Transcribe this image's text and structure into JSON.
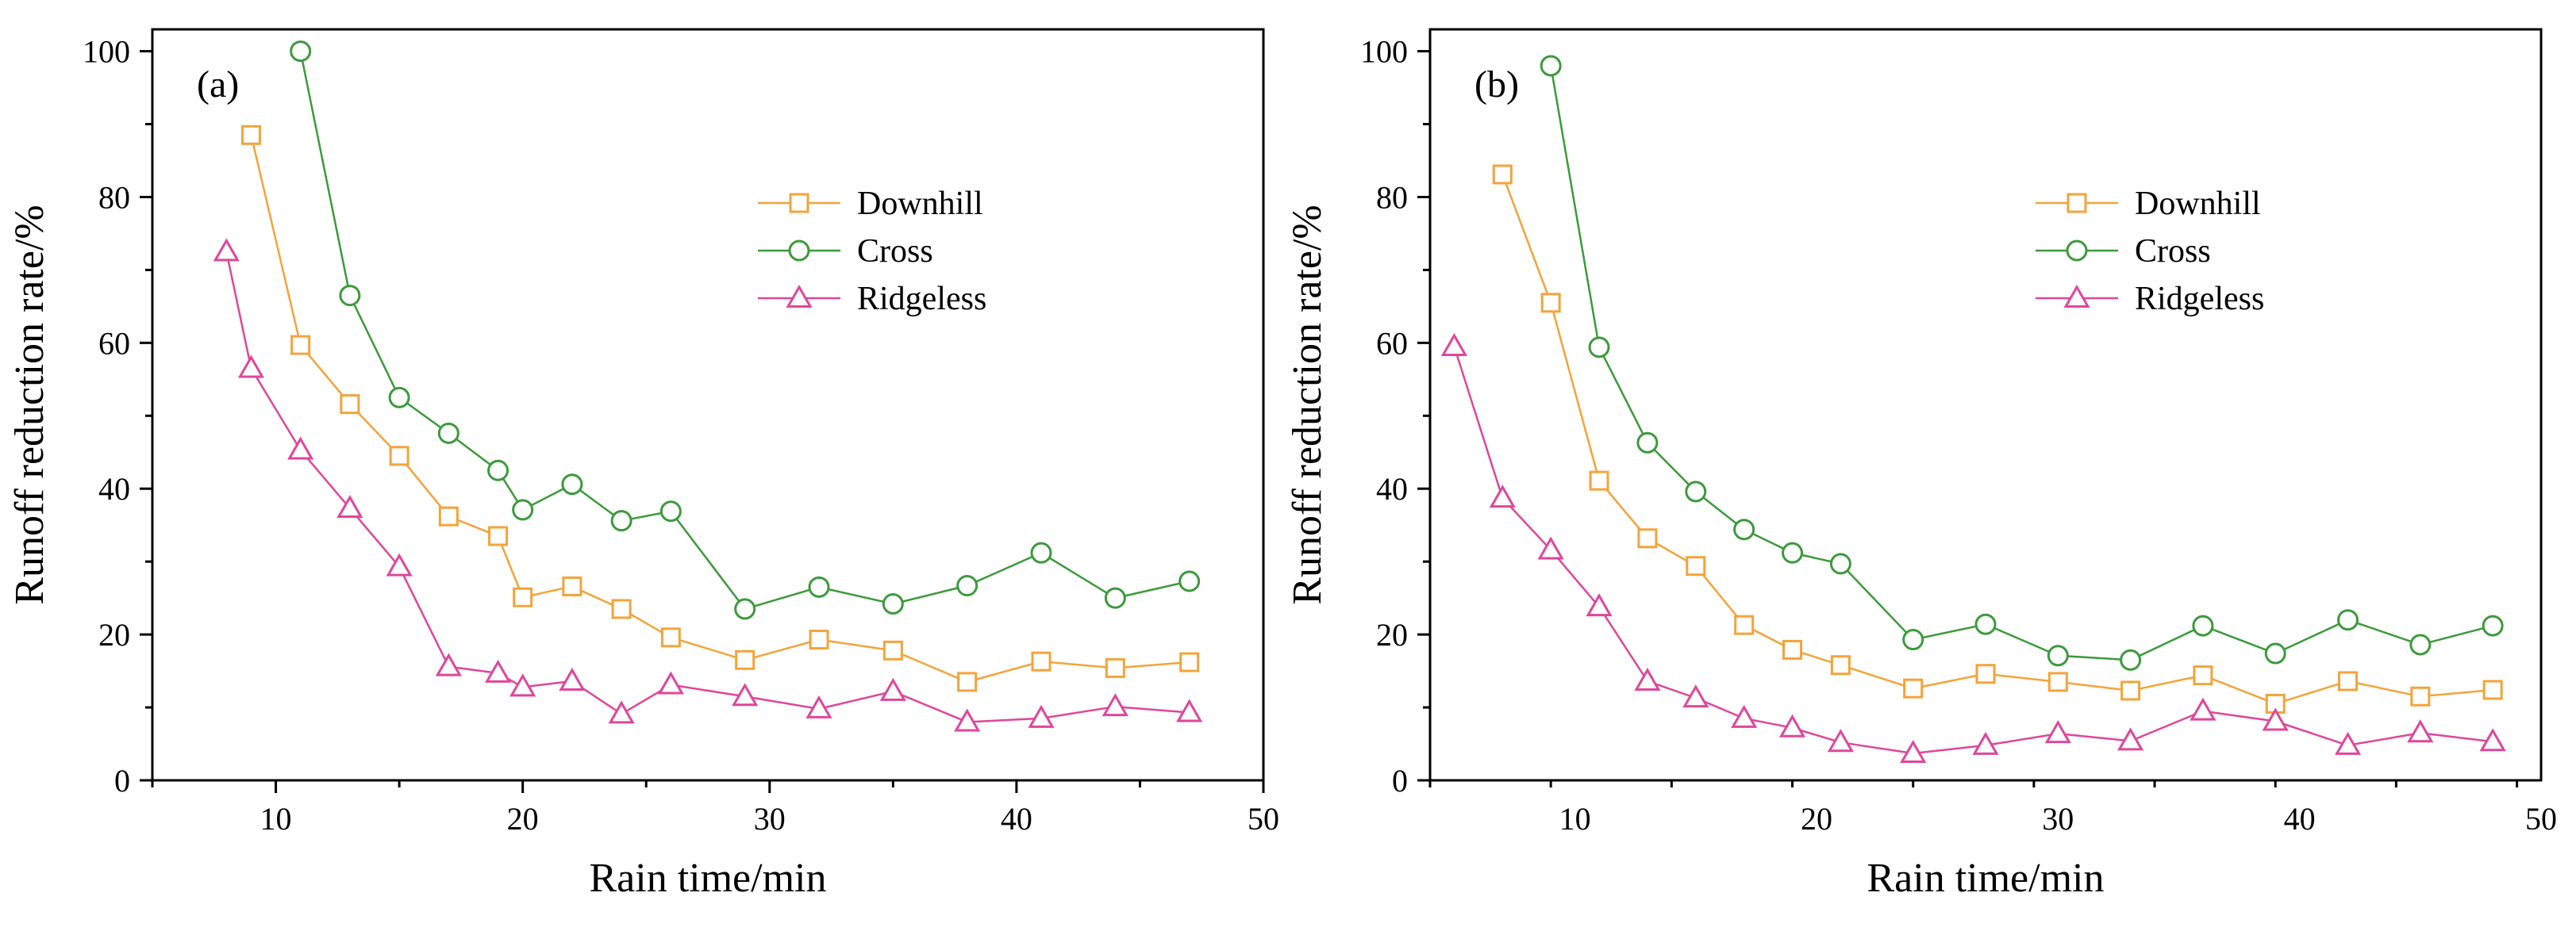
{
  "chart_data": [
    {
      "type": "line",
      "panel_label": "(a)",
      "xlabel": "Rain time/min",
      "ylabel": "Runoff reduction rate/%",
      "xlim": [
        5,
        50
      ],
      "ylim": [
        0,
        103
      ],
      "xticks": [
        10,
        20,
        30,
        40,
        50
      ],
      "yticks": [
        0,
        20,
        40,
        60,
        80,
        100
      ],
      "grid": false,
      "legend_position": "upper-middle-right",
      "series": [
        {
          "name": "Downhill",
          "marker": "square",
          "color": "#F5A33A",
          "x": [
            9,
            11,
            13,
            15,
            17,
            19,
            20,
            22,
            24,
            26,
            29,
            32,
            35,
            38,
            41,
            44,
            47
          ],
          "y": [
            88.5,
            59.7,
            51.6,
            44.5,
            36.2,
            33.5,
            25.1,
            26.6,
            23.5,
            19.6,
            16.5,
            19.3,
            17.8,
            13.5,
            16.3,
            15.4,
            16.2
          ]
        },
        {
          "name": "Cross",
          "marker": "circle",
          "color": "#3C9A3C",
          "x": [
            11,
            13,
            15,
            17,
            19,
            20,
            22,
            24,
            26,
            29,
            32,
            35,
            38,
            41,
            44,
            47
          ],
          "y": [
            100.0,
            66.5,
            52.5,
            47.6,
            42.5,
            37.1,
            40.6,
            35.6,
            36.9,
            23.5,
            26.5,
            24.2,
            26.7,
            31.2,
            25.0,
            27.3
          ]
        },
        {
          "name": "Ridgeless",
          "marker": "triangle",
          "color": "#E0469A",
          "x": [
            8,
            9,
            11,
            13,
            15,
            17,
            19,
            20,
            22,
            24,
            26,
            29,
            32,
            35,
            38,
            41,
            44,
            47
          ],
          "y": [
            72.5,
            56.5,
            45.3,
            37.3,
            29.3,
            15.6,
            14.7,
            12.8,
            13.6,
            9.1,
            13.1,
            11.5,
            9.8,
            12.2,
            8.0,
            8.5,
            10.1,
            9.3
          ]
        }
      ]
    },
    {
      "type": "line",
      "panel_label": "(b)",
      "xlabel": "Rain time/min",
      "ylabel": "Runoff reduction rate/%",
      "xlim": [
        4,
        50
      ],
      "ylim": [
        0,
        103
      ],
      "xticks": [
        10,
        20,
        30,
        40,
        50
      ],
      "yticks": [
        0,
        20,
        40,
        60,
        80,
        100
      ],
      "grid": false,
      "legend_position": "upper-middle-right",
      "series": [
        {
          "name": "Downhill",
          "marker": "square",
          "color": "#F5A33A",
          "x": [
            7,
            9,
            11,
            13,
            15,
            17,
            19,
            21,
            24,
            27,
            30,
            33,
            36,
            39,
            42,
            45,
            48
          ],
          "y": [
            83.1,
            65.5,
            41.1,
            33.2,
            29.4,
            21.3,
            17.9,
            15.8,
            12.6,
            14.6,
            13.5,
            12.3,
            14.4,
            10.5,
            13.6,
            11.5,
            12.4
          ]
        },
        {
          "name": "Cross",
          "marker": "circle",
          "color": "#3C9A3C",
          "x": [
            9,
            11,
            13,
            15,
            17,
            19,
            21,
            24,
            27,
            30,
            33,
            36,
            39,
            42,
            45,
            48
          ],
          "y": [
            98.0,
            59.4,
            46.3,
            39.6,
            34.4,
            31.2,
            29.7,
            19.3,
            21.4,
            17.1,
            16.5,
            21.2,
            17.4,
            22.0,
            18.6,
            21.2
          ]
        },
        {
          "name": "Ridgeless",
          "marker": "triangle",
          "color": "#E0469A",
          "x": [
            5,
            7,
            9,
            11,
            13,
            15,
            17,
            19,
            21,
            24,
            27,
            30,
            33,
            36,
            39,
            42,
            45,
            48
          ],
          "y": [
            59.5,
            38.7,
            31.6,
            23.8,
            13.6,
            11.3,
            8.5,
            7.2,
            5.2,
            3.7,
            4.8,
            6.4,
            5.4,
            9.5,
            8.1,
            4.8,
            6.5,
            5.3
          ]
        }
      ]
    }
  ]
}
